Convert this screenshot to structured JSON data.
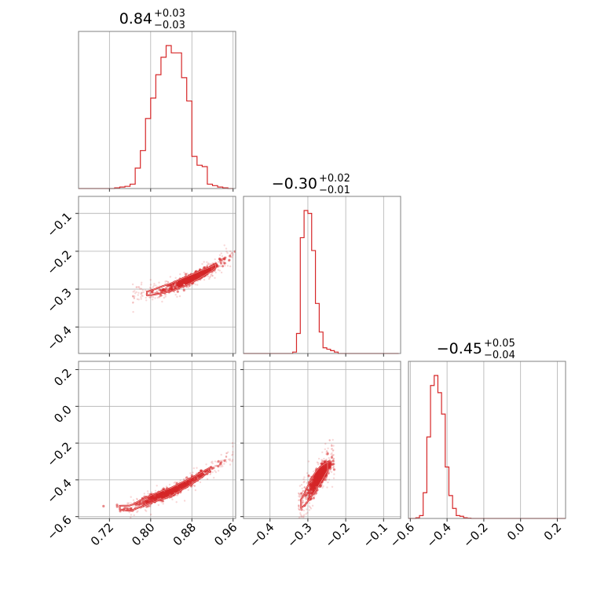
{
  "chart_data": {
    "type": "corner",
    "color": "#d62728",
    "parameters": [
      {
        "median": "0.84",
        "plus": "+0.03",
        "minus": "−0.03",
        "range": [
          0.66,
          0.965
        ],
        "ticks": [
          0.72,
          0.8,
          0.88,
          0.96
        ],
        "tick_labels": [
          "0.72",
          "0.80",
          "0.88",
          "0.96"
        ],
        "hist_edges": [
          0.66,
          0.67,
          0.68,
          0.69,
          0.7,
          0.71,
          0.72,
          0.73,
          0.74,
          0.75,
          0.76,
          0.77,
          0.78,
          0.79,
          0.8,
          0.81,
          0.82,
          0.83,
          0.84,
          0.85,
          0.86,
          0.87,
          0.88,
          0.89,
          0.9,
          0.91,
          0.92,
          0.93,
          0.94,
          0.95,
          0.96
        ],
        "hist_counts": [
          0,
          0,
          0,
          0,
          0,
          0,
          0,
          0.5,
          1,
          1.5,
          3,
          14,
          26,
          48,
          62,
          78,
          90,
          98,
          93,
          93,
          76,
          60,
          22,
          16,
          15,
          3,
          2,
          1,
          0.5,
          0
        ]
      },
      {
        "median": "−0.30",
        "plus": "+0.02",
        "minus": "−0.01",
        "range": [
          -0.47,
          -0.055
        ],
        "ticks": [
          -0.4,
          -0.3,
          -0.2,
          -0.1
        ],
        "tick_labels": [
          "−0.4",
          "−0.3",
          "−0.2",
          "−0.1"
        ],
        "hist_edges": [
          -0.47,
          -0.46,
          -0.45,
          -0.44,
          -0.43,
          -0.42,
          -0.41,
          -0.4,
          -0.39,
          -0.38,
          -0.37,
          -0.36,
          -0.35,
          -0.34,
          -0.33,
          -0.32,
          -0.31,
          -0.3,
          -0.29,
          -0.28,
          -0.27,
          -0.26,
          -0.25,
          -0.24,
          -0.23,
          -0.22,
          -0.21,
          -0.2,
          -0.19,
          -0.18,
          -0.17,
          -0.16,
          -0.15,
          -0.14,
          -0.13,
          -0.12,
          -0.11,
          -0.1,
          -0.09,
          -0.08,
          -0.07,
          -0.06
        ],
        "hist_counts": [
          0,
          0,
          0,
          0,
          0,
          0,
          0,
          0,
          0,
          0,
          0,
          0,
          0,
          1,
          14,
          81,
          100,
          98,
          72,
          35,
          15,
          4,
          3,
          2,
          1,
          0,
          0,
          0,
          0,
          0,
          0,
          0,
          0,
          0,
          0,
          0,
          0,
          0,
          0,
          0,
          0
        ]
      },
      {
        "median": "−0.45",
        "plus": "+0.05",
        "minus": "−0.04",
        "range": [
          -0.61,
          0.245
        ],
        "ticks": [
          -0.6,
          -0.4,
          -0.2,
          0.0,
          0.2
        ],
        "tick_labels": [
          "−0.6",
          "−0.4",
          "−0.2",
          "0.0",
          "0.2"
        ],
        "hist_edges": [
          -0.61,
          -0.59,
          -0.57,
          -0.55,
          -0.53,
          -0.51,
          -0.49,
          -0.47,
          -0.45,
          -0.43,
          -0.41,
          -0.39,
          -0.37,
          -0.35,
          -0.33,
          -0.31,
          -0.29,
          -0.27,
          -0.25,
          -0.23,
          -0.21,
          -0.19,
          -0.17,
          -0.15,
          -0.13,
          -0.11,
          -0.09,
          -0.07,
          -0.05,
          -0.03,
          -0.01,
          0.01,
          0.03,
          0.05,
          0.07,
          0.09,
          0.11,
          0.13,
          0.15,
          0.17,
          0.19,
          0.21,
          0.23,
          0.245
        ],
        "hist_counts": [
          0,
          0,
          0.5,
          2,
          18,
          57,
          93,
          100,
          88,
          73,
          36,
          16,
          7,
          2,
          1.5,
          0.5,
          0.2,
          0,
          0,
          0,
          0,
          0,
          0,
          0,
          0,
          0,
          0,
          0,
          0,
          0,
          0,
          0,
          0,
          0,
          0,
          0,
          0,
          0,
          0,
          0,
          0,
          0,
          0
        ]
      }
    ],
    "scatter_panels": [
      {
        "id": "p1-vs-p0",
        "x_param": 0,
        "y_param": 1,
        "y_ticks": [
          -0.1,
          -0.2,
          -0.3,
          -0.4
        ],
        "y_tick_labels": [
          "−0.1",
          "−0.2",
          "−0.3",
          "−0.4"
        ],
        "trend": [
          [
            0.77,
            -0.315
          ],
          [
            0.8,
            -0.31
          ],
          [
            0.84,
            -0.295
          ],
          [
            0.88,
            -0.272
          ],
          [
            0.92,
            -0.245
          ],
          [
            0.96,
            -0.205
          ]
        ],
        "spread": 0.01,
        "outlier_x_range": [
          0.765,
          0.96
        ]
      },
      {
        "id": "p2-vs-p0",
        "x_param": 0,
        "y_param": 2,
        "y_ticks": [
          0.2,
          0.0,
          -0.2,
          -0.4,
          -0.6
        ],
        "y_tick_labels": [
          "0.2",
          "0.0",
          "−0.2",
          "−0.4",
          "−0.6"
        ],
        "trend": [
          [
            0.71,
            -0.545
          ],
          [
            0.76,
            -0.555
          ],
          [
            0.8,
            -0.505
          ],
          [
            0.84,
            -0.465
          ],
          [
            0.88,
            -0.405
          ],
          [
            0.92,
            -0.335
          ],
          [
            0.96,
            -0.26
          ]
        ],
        "spread": 0.02,
        "outlier_x_range": [
          0.755,
          0.96
        ]
      },
      {
        "id": "p2-vs-p1",
        "x_param": 1,
        "y_param": 2,
        "y_ticks": [],
        "y_tick_labels": [],
        "trend": [
          [
            -0.33,
            -0.555
          ],
          [
            -0.31,
            -0.51
          ],
          [
            -0.29,
            -0.44
          ],
          [
            -0.27,
            -0.38
          ],
          [
            -0.25,
            -0.33
          ],
          [
            -0.23,
            -0.29
          ]
        ],
        "spread": 0.045,
        "outlier_x_range": [
          -0.325,
          -0.23
        ]
      }
    ]
  }
}
